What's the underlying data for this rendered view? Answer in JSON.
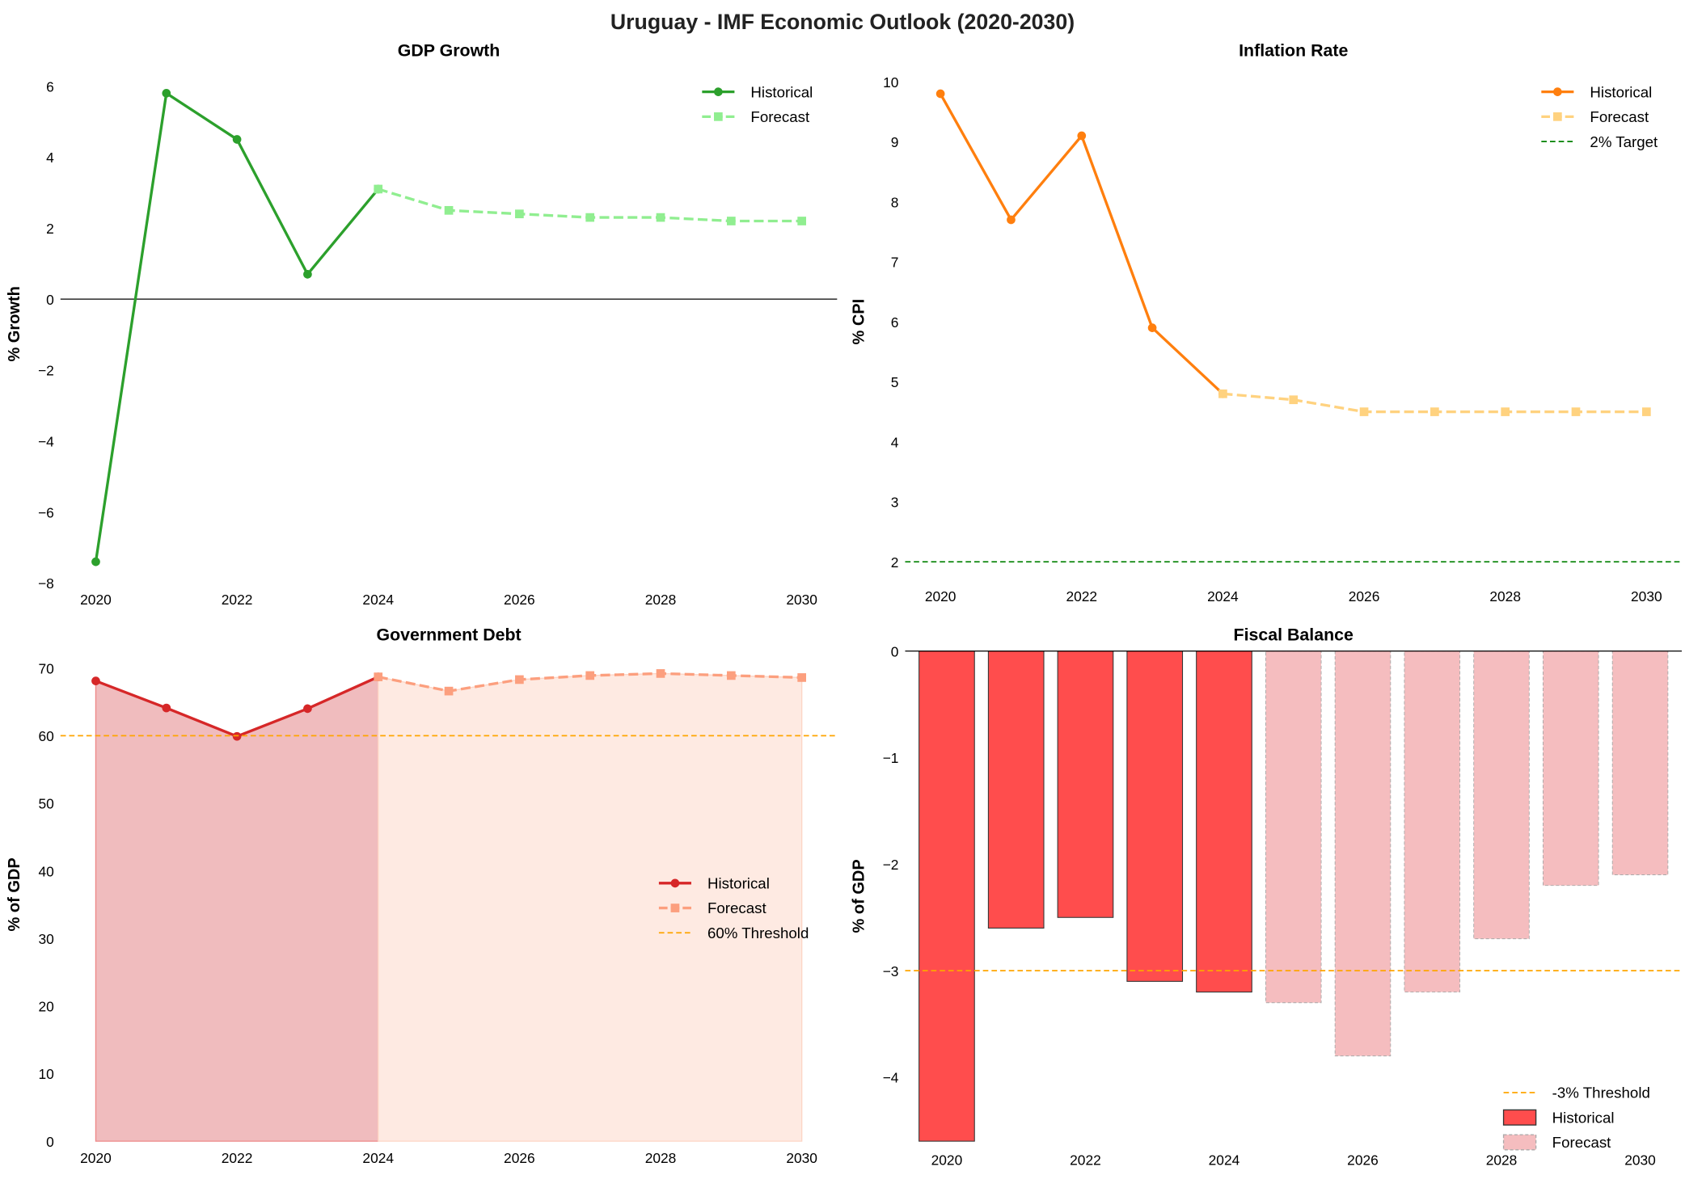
{
  "title": "Uruguay - IMF Economic Outlook (2020-2030)",
  "chart_data": [
    {
      "type": "line",
      "title": "GDP Growth",
      "ylabel": "% Growth",
      "xlabel": "",
      "xlim": [
        2019.5,
        2030.5
      ],
      "ylim": [
        -8,
        6.6
      ],
      "xticks": [
        "2020",
        "2022",
        "2024",
        "2026",
        "2028",
        "2030"
      ],
      "yticks": [
        "−8",
        "−6",
        "−4",
        "−2",
        "0",
        "2",
        "4",
        "6"
      ],
      "grid": false,
      "legend": "top-right",
      "reference_line": {
        "y": 0,
        "color": "#000000",
        "label": ""
      },
      "series": [
        {
          "name": "Historical",
          "style": "solid-circle",
          "color": "#2ca02c",
          "x": [
            2020,
            2021,
            2022,
            2023,
            2024
          ],
          "y": [
            -7.4,
            5.8,
            4.5,
            0.7,
            3.1
          ]
        },
        {
          "name": "Forecast",
          "style": "dashed-square",
          "color": "#90ee90",
          "x": [
            2024,
            2025,
            2026,
            2027,
            2028,
            2029,
            2030
          ],
          "y": [
            3.1,
            2.5,
            2.4,
            2.3,
            2.3,
            2.2,
            2.2
          ]
        }
      ]
    },
    {
      "type": "line",
      "title": "Inflation Rate",
      "ylabel": "% CPI",
      "xlabel": "",
      "xlim": [
        2019.5,
        2030.5
      ],
      "ylim": [
        1.7,
        10.3
      ],
      "xticks": [
        "2020",
        "2022",
        "2024",
        "2026",
        "2028",
        "2030"
      ],
      "yticks": [
        "2",
        "3",
        "4",
        "5",
        "6",
        "7",
        "8",
        "9",
        "10"
      ],
      "grid": false,
      "legend": "top-right",
      "reference_line": {
        "y": 2,
        "color": "#008000",
        "label": "2% Target",
        "dashed": true
      },
      "series": [
        {
          "name": "Historical",
          "style": "solid-circle",
          "color": "#ff7f0e",
          "x": [
            2020,
            2021,
            2022,
            2023,
            2024
          ],
          "y": [
            9.8,
            7.7,
            9.1,
            5.9,
            4.8
          ]
        },
        {
          "name": "Forecast",
          "style": "dashed-square",
          "color": "#ffd27f",
          "x": [
            2024,
            2025,
            2026,
            2027,
            2028,
            2029,
            2030
          ],
          "y": [
            4.8,
            4.7,
            4.5,
            4.5,
            4.5,
            4.5,
            4.5
          ]
        }
      ]
    },
    {
      "type": "area",
      "title": "Government Debt",
      "ylabel": "% of GDP",
      "xlabel": "",
      "xlim": [
        2019.5,
        2030.5
      ],
      "ylim": [
        0,
        73
      ],
      "xticks": [
        "2020",
        "2022",
        "2024",
        "2026",
        "2028",
        "2030"
      ],
      "yticks": [
        "0",
        "10",
        "20",
        "30",
        "40",
        "50",
        "60",
        "70"
      ],
      "grid": false,
      "legend": "center-right",
      "reference_line": {
        "y": 60,
        "color": "#ffa500",
        "label": "60% Threshold",
        "dashed": true
      },
      "series": [
        {
          "name": "Historical",
          "style": "solid-circle",
          "color": "#d62728",
          "fill": "#f0bcbe",
          "x": [
            2020,
            2021,
            2022,
            2023,
            2024
          ],
          "y": [
            68.1,
            64.1,
            59.9,
            64.0,
            68.7
          ]
        },
        {
          "name": "Forecast",
          "style": "dashed-square",
          "color": "#fc9f7e",
          "fill": "#feeae2",
          "x": [
            2024,
            2025,
            2026,
            2027,
            2028,
            2029,
            2030
          ],
          "y": [
            68.7,
            66.6,
            68.3,
            68.9,
            69.2,
            68.9,
            68.6
          ]
        }
      ]
    },
    {
      "type": "bar",
      "title": "Fiscal Balance",
      "ylabel": "% of GDP",
      "xlabel": "",
      "ylim": [
        -4.6,
        0
      ],
      "categories": [
        "2020",
        "2021",
        "2022",
        "2023",
        "2024",
        "2025",
        "2026",
        "2027",
        "2028",
        "2029",
        "2030"
      ],
      "xticks": [
        "2020",
        "2022",
        "2024",
        "2026",
        "2028",
        "2030"
      ],
      "yticks": [
        "−4",
        "−3",
        "−2",
        "−1",
        "0"
      ],
      "grid": false,
      "legend": "bottom-right",
      "reference_line": {
        "y": -3,
        "color": "#ffa500",
        "label": "-3% Threshold",
        "dashed": true
      },
      "series": [
        {
          "name": "Historical",
          "color": "#ff4d4d",
          "values": [
            -4.6,
            -2.6,
            -2.5,
            -3.1,
            -3.2,
            null,
            null,
            null,
            null,
            null,
            null
          ]
        },
        {
          "name": "Forecast",
          "color": "#f5bdbf",
          "values": [
            null,
            null,
            null,
            null,
            null,
            -3.3,
            -3.8,
            -3.2,
            -2.7,
            -2.2,
            -2.1
          ]
        }
      ]
    }
  ]
}
